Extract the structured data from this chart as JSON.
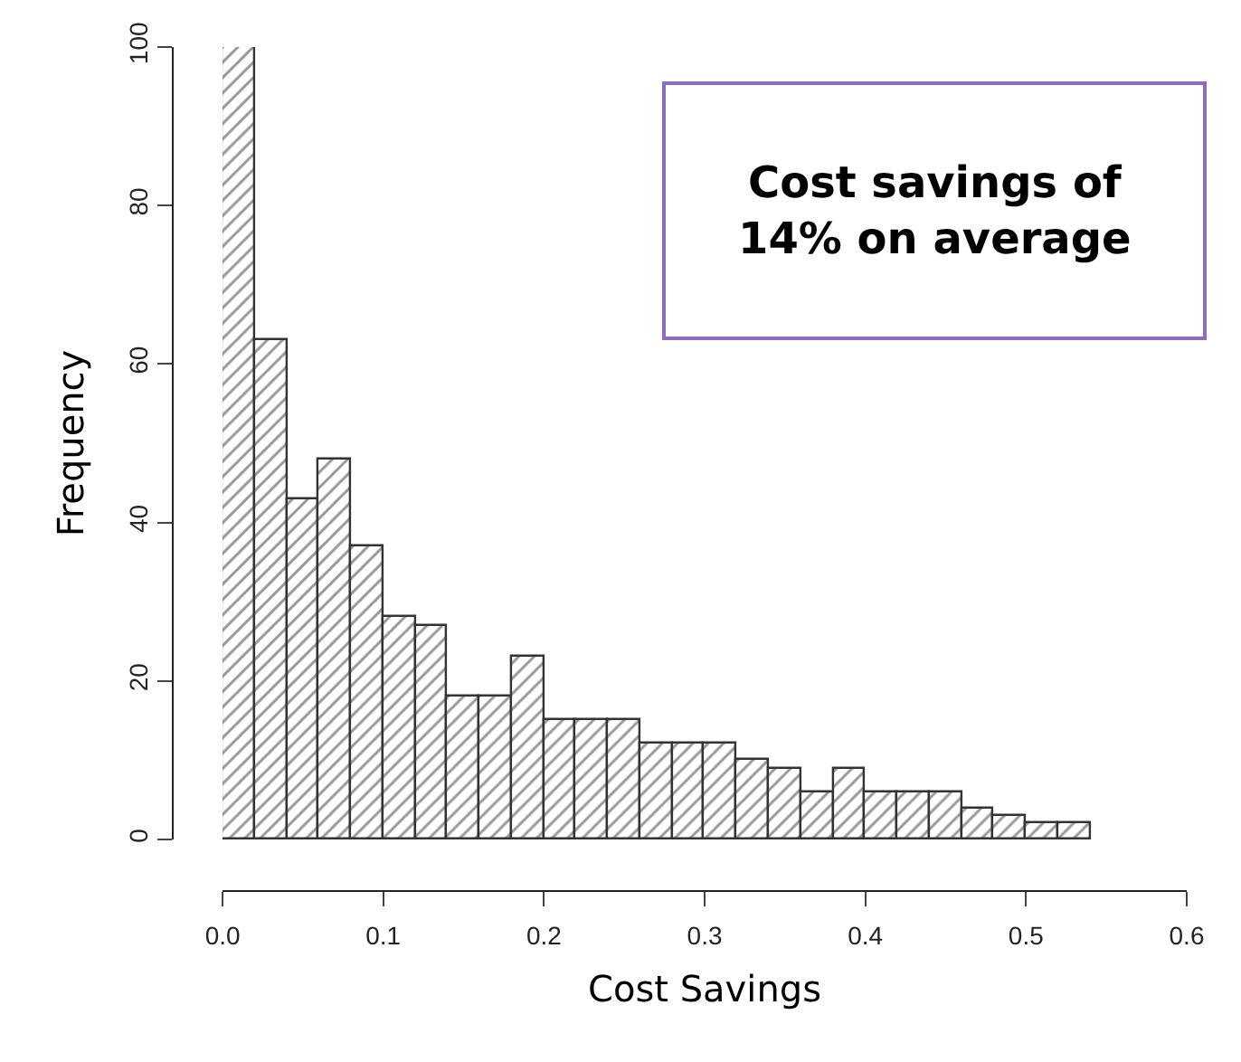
{
  "chart_data": {
    "type": "histogram",
    "xlabel": "Cost Savings",
    "ylabel": "Frequency",
    "bins": [
      0,
      0.02,
      0.04,
      0.06,
      0.08,
      0.1,
      0.12,
      0.14,
      0.16,
      0.18,
      0.2,
      0.22,
      0.24,
      0.26,
      0.28,
      0.3,
      0.32,
      0.34,
      0.36,
      0.38,
      0.4,
      0.42,
      0.44,
      0.46,
      0.48,
      0.5,
      0.52,
      0.54
    ],
    "values": [
      100,
      63,
      43,
      48,
      37,
      28,
      27,
      18,
      18,
      23,
      15,
      15,
      15,
      12,
      12,
      12,
      10,
      9,
      6,
      9,
      6,
      6,
      6,
      4,
      3,
      2,
      2
    ],
    "color": "#333333",
    "xlim": [
      0,
      0.6
    ],
    "xticks": [
      {
        "value": 0,
        "label": "0.0"
      },
      0.1,
      0.2,
      0.3,
      0.4,
      0.5,
      0.6
    ],
    "ylim": [
      0,
      100
    ],
    "yticks": [
      0,
      20,
      40,
      60,
      80,
      100
    ],
    "annotations": [
      "Cost savings of\n14% on average"
    ]
  }
}
